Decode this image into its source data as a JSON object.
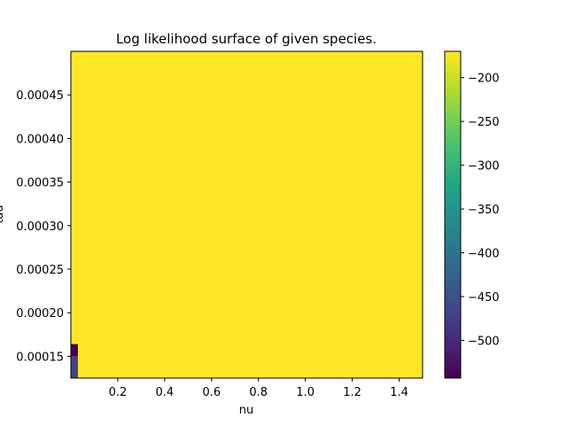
{
  "chart_data": {
    "type": "heatmap",
    "title": "Log likelihood surface of given species.",
    "xlabel": "nu",
    "ylabel": "tau",
    "xlim": [
      0.0,
      1.5
    ],
    "ylim": [
      0.000125,
      0.0005
    ],
    "x_ticks": [
      0.2,
      0.4,
      0.6,
      0.8,
      1.0,
      1.2,
      1.4
    ],
    "x_tick_labels": [
      "0.2",
      "0.4",
      "0.6",
      "0.8",
      "1.0",
      "1.2",
      "1.4"
    ],
    "y_ticks": [
      0.00015,
      0.0002,
      0.00025,
      0.0003,
      0.00035,
      0.0004,
      0.00045
    ],
    "y_tick_labels": [
      "0.00015",
      "0.00020",
      "0.00025",
      "0.00030",
      "0.00035",
      "0.00040",
      "0.00045"
    ],
    "colormap": "viridis",
    "colorbar": {
      "range": [
        -543,
        -170
      ],
      "ticks": [
        -200,
        -250,
        -300,
        -350,
        -400,
        -450,
        -500
      ],
      "tick_labels": [
        "−200",
        "−250",
        "−300",
        "−350",
        "−400",
        "−450",
        "−500"
      ]
    },
    "background_value": -170,
    "cells": [
      {
        "x": [
          0.0,
          0.03
        ],
        "y": [
          0.000125,
          0.00015
        ],
        "value": -470
      },
      {
        "x": [
          0.0,
          0.03
        ],
        "y": [
          0.00015,
          0.000164
        ],
        "value": -540
      }
    ]
  }
}
